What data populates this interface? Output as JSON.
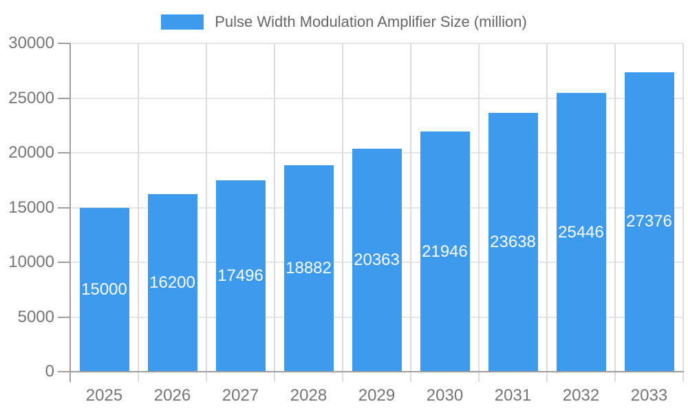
{
  "chart_data": {
    "type": "bar",
    "title": "Pulse Width Modulation Amplifier Size (million)",
    "legend_label": "Pulse Width Modulation Amplifier Size (million)",
    "legend_position": "top-center",
    "categories": [
      "2025",
      "2026",
      "2027",
      "2028",
      "2029",
      "2030",
      "2031",
      "2032",
      "2033"
    ],
    "values": [
      15000,
      16200,
      17496,
      18882,
      20363,
      21946,
      23638,
      25446,
      27376
    ],
    "value_labels": [
      "15000",
      "16200",
      "17496",
      "18882",
      "20363",
      "21946",
      "23638",
      "25446",
      "27376"
    ],
    "value_label_position": "inside-center",
    "xlabel": "",
    "ylabel": "",
    "ylim": [
      0,
      30000
    ],
    "ytick_step": 5000,
    "yticks": [
      0,
      5000,
      10000,
      15000,
      20000,
      25000,
      30000
    ],
    "grid": true,
    "colors": {
      "bar": "#3D9AEC",
      "h_grid_line": "#E6E6E6",
      "v_grid_line": "#DCDCDC",
      "axis_line": "#9E9E9E",
      "axis_text": "#757575",
      "legend_text": "#666666",
      "value_text": "#FFFFFF",
      "background": "#FFFFFF"
    }
  }
}
